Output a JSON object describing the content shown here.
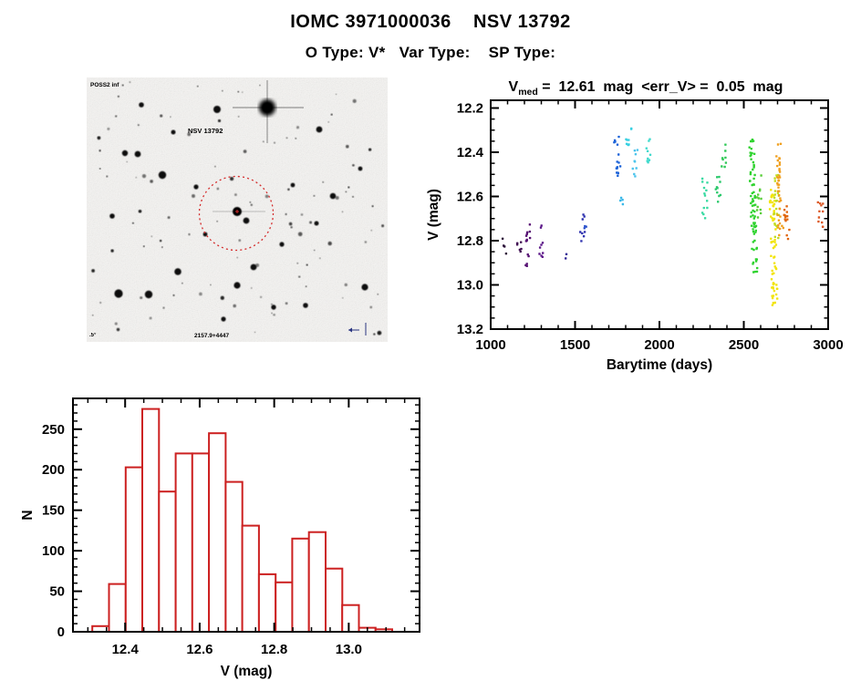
{
  "page": {
    "title": "IOMC 3971000036    NSV 13792",
    "subtitle": "O Type: V*   Var Type:    SP Type:"
  },
  "finding_chart": {
    "survey_label": "POSS2 inf",
    "target_label": "NSV 13792",
    "plate_label": "2157.9+4447",
    "scale_label": ".5°",
    "annotation_color": "#d42a2a",
    "corner_label_color": "#2a3580"
  },
  "chart_data": [
    {
      "type": "scatter",
      "title": {
        "prefix": "V",
        "sub": "med",
        "rest": " =  12.61  mag  <err_V> =  0.05  mag"
      },
      "xlabel": "Barytime (days)",
      "ylabel": "V (mag)",
      "xlim": [
        1000,
        3000
      ],
      "ylim": [
        12.165,
        13.2
      ],
      "y_inverted_mag_axis": true,
      "grid": false,
      "x_tick_labels": [
        "1000",
        "1500",
        "2000",
        "2500",
        "3000"
      ],
      "y_tick_labels": [
        "12.2",
        "12.4",
        "12.6",
        "12.8",
        "13.0",
        "13.2"
      ],
      "x_minor_step": 100,
      "y_minor_step": 0.05,
      "clusters": [
        {
          "t": 1085,
          "v_min": 12.79,
          "v_max": 12.86,
          "n": 4,
          "color": "#2b1038"
        },
        {
          "t": 1170,
          "v_min": 12.8,
          "v_max": 12.85,
          "n": 6,
          "color": "#400f52"
        },
        {
          "t": 1222,
          "v_min": 12.72,
          "v_max": 12.94,
          "n": 14,
          "color": "#571173"
        },
        {
          "t": 1300,
          "v_min": 12.72,
          "v_max": 12.88,
          "n": 9,
          "color": "#5e1a8a"
        },
        {
          "t": 1435,
          "v_min": 12.86,
          "v_max": 12.89,
          "n": 2,
          "color": "#2f2496"
        },
        {
          "t": 1545,
          "v_min": 12.67,
          "v_max": 12.81,
          "n": 8,
          "color": "#3134b0"
        },
        {
          "t": 1572,
          "v_min": 12.72,
          "v_max": 12.75,
          "n": 3,
          "color": "#2d53cc"
        },
        {
          "t": 1745,
          "v_min": 12.33,
          "v_max": 12.52,
          "n": 16,
          "color": "#1c63d8",
          "tilt": 2
        },
        {
          "t": 1785,
          "v_min": 12.6,
          "v_max": 12.64,
          "n": 4,
          "color": "#3bb8e8"
        },
        {
          "t": 1818,
          "v_min": 12.29,
          "v_max": 12.37,
          "n": 9,
          "color": "#38d0e2"
        },
        {
          "t": 1855,
          "v_min": 12.39,
          "v_max": 12.51,
          "n": 9,
          "color": "#4cc4ec"
        },
        {
          "t": 1935,
          "v_min": 12.34,
          "v_max": 12.45,
          "n": 11,
          "color": "#41dacd"
        },
        {
          "t": 2270,
          "v_min": 12.51,
          "v_max": 12.74,
          "n": 13,
          "color": "#39daa2"
        },
        {
          "t": 2350,
          "v_min": 12.51,
          "v_max": 12.63,
          "n": 10,
          "color": "#2cc96c"
        },
        {
          "t": 2378,
          "v_min": 12.35,
          "v_max": 12.47,
          "n": 8,
          "color": "#30c957"
        },
        {
          "t": 2545,
          "v_min": 12.32,
          "v_max": 12.95,
          "n": 75,
          "color": "#2fd32f",
          "tilt": 4
        },
        {
          "t": 2592,
          "v_min": 12.5,
          "v_max": 12.7,
          "n": 12,
          "color": "#59ce38"
        },
        {
          "t": 2668,
          "v_min": 12.56,
          "v_max": 13.11,
          "n": 65,
          "color": "#f2e40a",
          "tilt": 3
        },
        {
          "t": 2692,
          "v_min": 12.48,
          "v_max": 12.8,
          "n": 22,
          "color": "#c0dc1e"
        },
        {
          "t": 2708,
          "v_min": 12.36,
          "v_max": 12.78,
          "n": 40,
          "color": "#f0a020",
          "tilt": 2
        },
        {
          "t": 2755,
          "v_min": 12.63,
          "v_max": 12.83,
          "n": 13,
          "color": "#e0660f"
        },
        {
          "t": 2955,
          "v_min": 12.62,
          "v_max": 12.76,
          "n": 11,
          "color": "#dc5a28"
        }
      ]
    },
    {
      "type": "bar",
      "xlabel": "V (mag)",
      "ylabel": "N",
      "xlim": [
        12.26,
        13.19
      ],
      "ylim": [
        0,
        288
      ],
      "grid": false,
      "bar_color": "#cc2020",
      "bin_start": 12.312,
      "bin_width": 0.0447,
      "counts": [
        7,
        59,
        203,
        275,
        173,
        220,
        220,
        245,
        185,
        131,
        71,
        61,
        115,
        123,
        78,
        33,
        5,
        3
      ],
      "x_tick_labels": [
        "12.4",
        "12.6",
        "12.8",
        "13.0"
      ],
      "y_tick_labels": [
        "0",
        "50",
        "100",
        "150",
        "200",
        "250"
      ],
      "x_minor_step": 0.05,
      "y_minor_step": 10
    }
  ]
}
